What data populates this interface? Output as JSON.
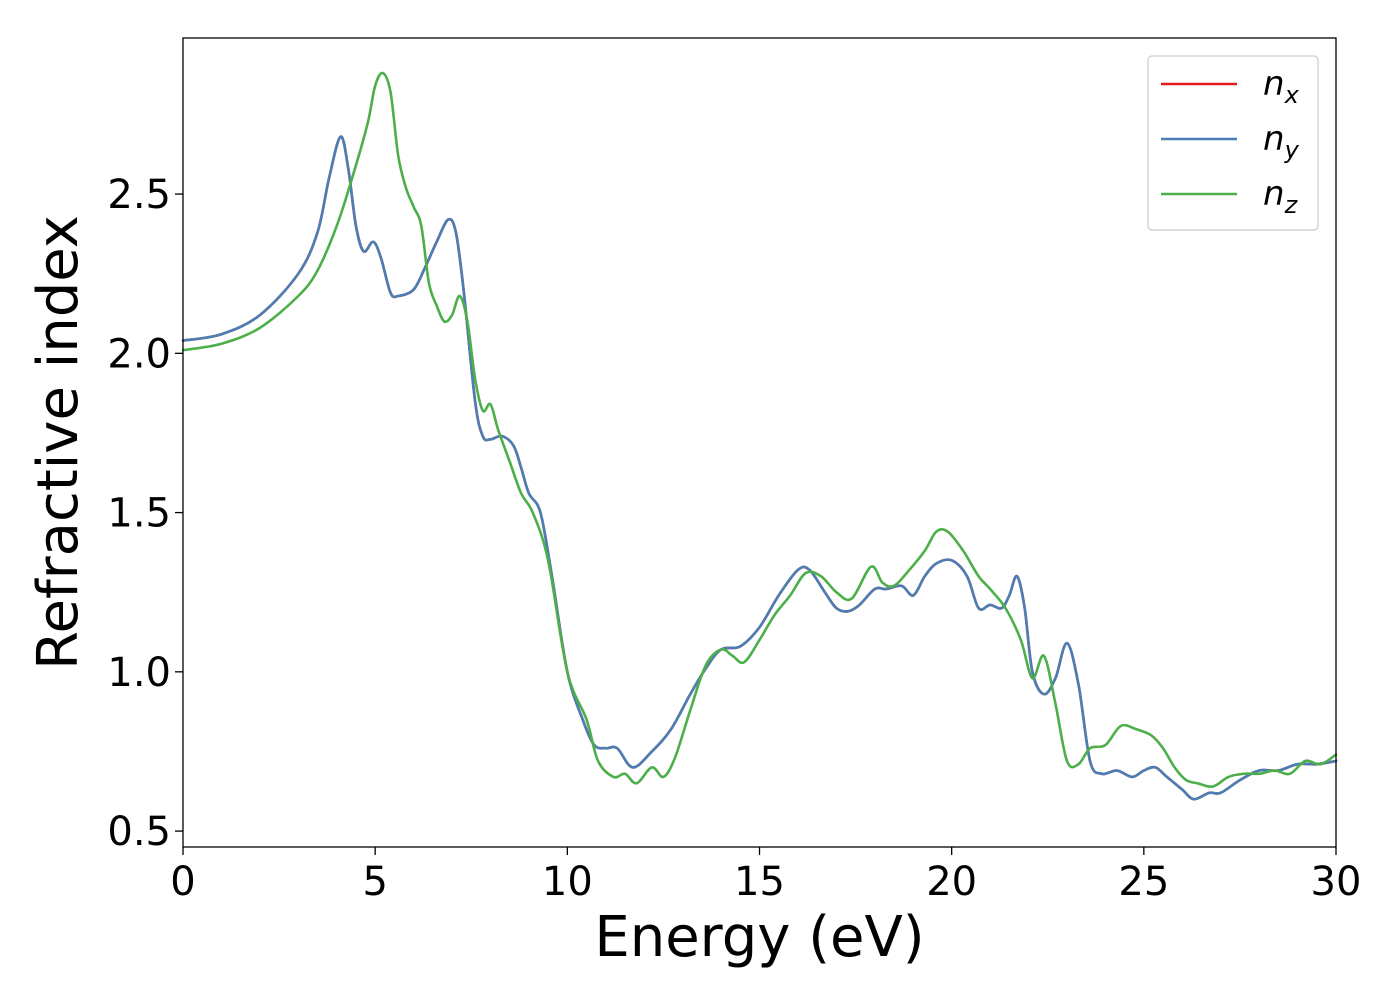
{
  "chart_data": {
    "type": "line",
    "xlabel": "Energy (eV)",
    "ylabel": "Refractive index",
    "xlim": [
      0,
      30
    ],
    "ylim": [
      0.45,
      2.99
    ],
    "xticks": [
      0,
      5,
      10,
      15,
      20,
      25,
      30
    ],
    "yticks": [
      0.5,
      1.0,
      1.5,
      2.0,
      2.5
    ],
    "xtick_labels": [
      "0",
      "5",
      "10",
      "15",
      "20",
      "25",
      "30"
    ],
    "ytick_labels": [
      "0.5",
      "1.0",
      "1.5",
      "2.0",
      "2.5"
    ],
    "grid": false,
    "legend_position": "top-right",
    "series": [
      {
        "name": "n_x",
        "label_base": "n",
        "label_sub": "x",
        "color": "#e41a1c",
        "x": [
          0,
          1,
          2,
          3,
          3.5,
          3.8,
          4.1,
          4.3,
          4.5,
          4.7,
          4.95,
          5.15,
          5.4,
          5.6,
          6.0,
          6.3,
          6.6,
          6.9,
          7.1,
          7.3,
          7.6,
          7.8,
          8.0,
          8.3,
          8.6,
          8.8,
          9.0,
          9.3,
          9.6,
          10.0,
          10.4,
          10.7,
          11.0,
          11.3,
          11.7,
          12.2,
          12.7,
          13.2,
          13.6,
          14.0,
          14.5,
          15.0,
          15.5,
          16.0,
          16.3,
          16.7,
          17.0,
          17.3,
          17.6,
          18.0,
          18.3,
          18.7,
          19.0,
          19.3,
          19.6,
          20.0,
          20.4,
          20.7,
          21.0,
          21.3,
          21.5,
          21.7,
          21.9,
          22.1,
          22.4,
          22.7,
          23.0,
          23.3,
          23.6,
          23.9,
          24.3,
          24.7,
          25.0,
          25.3,
          25.6,
          26.0,
          26.3,
          26.7,
          27.0,
          27.5,
          28.0,
          28.5,
          29.0,
          29.5,
          30.0
        ],
        "y": [
          2.04,
          2.06,
          2.12,
          2.25,
          2.38,
          2.55,
          2.68,
          2.58,
          2.4,
          2.32,
          2.35,
          2.3,
          2.19,
          2.18,
          2.2,
          2.27,
          2.35,
          2.42,
          2.38,
          2.2,
          1.85,
          1.74,
          1.73,
          1.74,
          1.71,
          1.64,
          1.56,
          1.5,
          1.3,
          1.0,
          0.85,
          0.77,
          0.76,
          0.76,
          0.7,
          0.75,
          0.82,
          0.93,
          1.01,
          1.07,
          1.08,
          1.14,
          1.24,
          1.32,
          1.32,
          1.25,
          1.2,
          1.19,
          1.21,
          1.26,
          1.26,
          1.27,
          1.24,
          1.3,
          1.34,
          1.35,
          1.3,
          1.2,
          1.21,
          1.2,
          1.24,
          1.3,
          1.2,
          1.0,
          0.93,
          0.98,
          1.09,
          0.96,
          0.72,
          0.68,
          0.69,
          0.67,
          0.69,
          0.7,
          0.67,
          0.63,
          0.6,
          0.62,
          0.62,
          0.66,
          0.69,
          0.69,
          0.71,
          0.71,
          0.72
        ]
      },
      {
        "name": "n_y",
        "label_base": "n",
        "label_sub": "y",
        "color": "#4a7fb5",
        "x": [
          0,
          1,
          2,
          3,
          3.5,
          3.8,
          4.1,
          4.3,
          4.5,
          4.7,
          4.95,
          5.15,
          5.4,
          5.6,
          6.0,
          6.3,
          6.6,
          6.9,
          7.1,
          7.3,
          7.6,
          7.8,
          8.0,
          8.3,
          8.6,
          8.8,
          9.0,
          9.3,
          9.6,
          10.0,
          10.4,
          10.7,
          11.0,
          11.3,
          11.7,
          12.2,
          12.7,
          13.2,
          13.6,
          14.0,
          14.5,
          15.0,
          15.5,
          16.0,
          16.3,
          16.7,
          17.0,
          17.3,
          17.6,
          18.0,
          18.3,
          18.7,
          19.0,
          19.3,
          19.6,
          20.0,
          20.4,
          20.7,
          21.0,
          21.3,
          21.5,
          21.7,
          21.9,
          22.1,
          22.4,
          22.7,
          23.0,
          23.3,
          23.6,
          23.9,
          24.3,
          24.7,
          25.0,
          25.3,
          25.6,
          26.0,
          26.3,
          26.7,
          27.0,
          27.5,
          28.0,
          28.5,
          29.0,
          29.5,
          30.0
        ],
        "y": [
          2.04,
          2.06,
          2.12,
          2.25,
          2.38,
          2.55,
          2.68,
          2.58,
          2.4,
          2.32,
          2.35,
          2.3,
          2.19,
          2.18,
          2.2,
          2.27,
          2.35,
          2.42,
          2.38,
          2.2,
          1.85,
          1.74,
          1.73,
          1.74,
          1.71,
          1.64,
          1.56,
          1.5,
          1.3,
          1.0,
          0.85,
          0.77,
          0.76,
          0.76,
          0.7,
          0.75,
          0.82,
          0.93,
          1.01,
          1.07,
          1.08,
          1.14,
          1.24,
          1.32,
          1.32,
          1.25,
          1.2,
          1.19,
          1.21,
          1.26,
          1.26,
          1.27,
          1.24,
          1.3,
          1.34,
          1.35,
          1.3,
          1.2,
          1.21,
          1.2,
          1.24,
          1.3,
          1.2,
          1.0,
          0.93,
          0.98,
          1.09,
          0.96,
          0.72,
          0.68,
          0.69,
          0.67,
          0.69,
          0.7,
          0.67,
          0.63,
          0.6,
          0.62,
          0.62,
          0.66,
          0.69,
          0.69,
          0.71,
          0.71,
          0.72
        ]
      },
      {
        "name": "n_z",
        "label_base": "n",
        "label_sub": "z",
        "color": "#4daf4a",
        "x": [
          0,
          1,
          2,
          3,
          3.5,
          4.0,
          4.4,
          4.8,
          5.0,
          5.2,
          5.4,
          5.6,
          5.8,
          6.0,
          6.2,
          6.4,
          6.6,
          6.8,
          7.0,
          7.2,
          7.4,
          7.6,
          7.8,
          8.0,
          8.2,
          8.5,
          8.8,
          9.1,
          9.5,
          10.0,
          10.5,
          10.8,
          11.2,
          11.5,
          11.8,
          12.2,
          12.5,
          12.8,
          13.2,
          13.6,
          14.0,
          14.3,
          14.6,
          15.0,
          15.4,
          15.8,
          16.2,
          16.6,
          17.0,
          17.4,
          17.9,
          18.2,
          18.5,
          18.9,
          19.3,
          19.6,
          19.9,
          20.3,
          20.7,
          21.0,
          21.4,
          21.8,
          22.1,
          22.4,
          22.7,
          23.0,
          23.3,
          23.6,
          24.0,
          24.4,
          24.8,
          25.2,
          25.5,
          25.8,
          26.1,
          26.4,
          26.8,
          27.2,
          27.6,
          28.0,
          28.4,
          28.8,
          29.2,
          29.6,
          30.0
        ],
        "y": [
          2.01,
          2.03,
          2.08,
          2.18,
          2.26,
          2.4,
          2.55,
          2.72,
          2.84,
          2.88,
          2.82,
          2.62,
          2.52,
          2.46,
          2.4,
          2.22,
          2.15,
          2.1,
          2.12,
          2.18,
          2.1,
          1.92,
          1.82,
          1.84,
          1.76,
          1.66,
          1.56,
          1.5,
          1.35,
          1.0,
          0.85,
          0.72,
          0.67,
          0.68,
          0.65,
          0.7,
          0.67,
          0.73,
          0.88,
          1.02,
          1.07,
          1.05,
          1.03,
          1.1,
          1.18,
          1.24,
          1.31,
          1.3,
          1.25,
          1.23,
          1.33,
          1.28,
          1.27,
          1.32,
          1.38,
          1.44,
          1.44,
          1.38,
          1.3,
          1.26,
          1.2,
          1.1,
          0.98,
          1.05,
          0.9,
          0.72,
          0.71,
          0.76,
          0.77,
          0.83,
          0.82,
          0.8,
          0.76,
          0.7,
          0.66,
          0.65,
          0.64,
          0.67,
          0.68,
          0.68,
          0.69,
          0.68,
          0.72,
          0.71,
          0.74
        ]
      }
    ]
  }
}
